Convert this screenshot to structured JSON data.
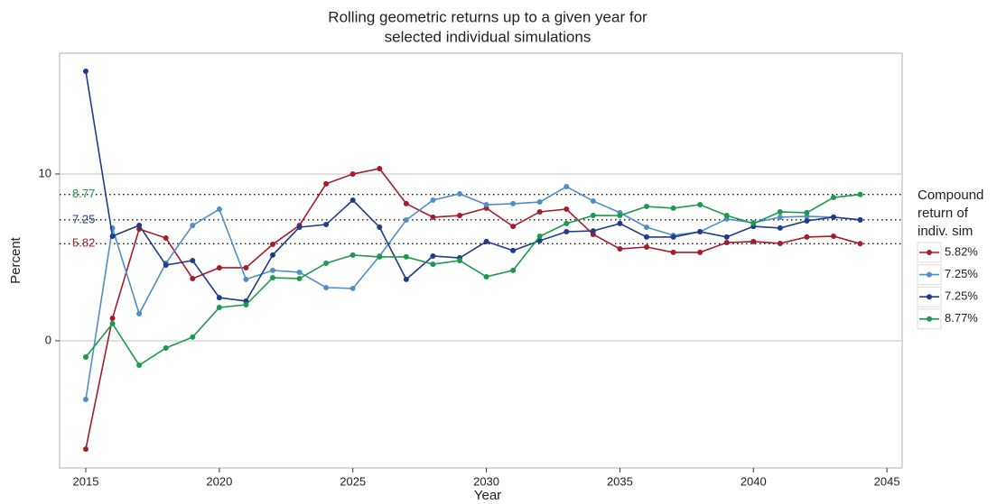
{
  "chart_data": {
    "type": "line",
    "title": [
      "Rolling geometric returns up to a given year for",
      "selected individual simulations"
    ],
    "x_label": "Year",
    "y_label": "Percent",
    "legend_title": [
      "Compound",
      "return of",
      "indiv. sim"
    ],
    "x": [
      2015,
      2016,
      2017,
      2018,
      2019,
      2020,
      2021,
      2022,
      2023,
      2024,
      2025,
      2026,
      2027,
      2028,
      2029,
      2030,
      2031,
      2032,
      2033,
      2034,
      2035,
      2036,
      2037,
      2038,
      2039,
      2040,
      2041,
      2042,
      2043,
      2044
    ],
    "xlim": [
      2014.02,
      2045.57
    ],
    "xticks": [
      2015,
      2020,
      2025,
      2030,
      2035,
      2040,
      2045
    ],
    "ylim": [
      -7.62,
      17.24
    ],
    "yticks": [
      0,
      10
    ],
    "grid": true,
    "series": [
      {
        "name": "5.82%",
        "color": "#a51c2a",
        "values": [
          -6.49,
          1.35,
          6.7,
          6.16,
          3.73,
          4.38,
          4.38,
          5.78,
          6.92,
          9.41,
          10.0,
          10.32,
          8.22,
          7.41,
          7.51,
          7.95,
          6.86,
          7.73,
          7.89,
          6.38,
          5.51,
          5.62,
          5.3,
          5.3,
          5.89,
          5.95,
          5.84,
          6.22,
          6.27,
          5.82
        ]
      },
      {
        "name": "7.25%",
        "color": "#4f8fc6",
        "values": [
          -3.51,
          6.76,
          1.62,
          4.65,
          6.92,
          7.89,
          3.68,
          4.22,
          4.11,
          3.19,
          3.14,
          5.08,
          7.24,
          8.43,
          8.81,
          8.16,
          8.22,
          8.32,
          9.24,
          8.38,
          7.68,
          6.81,
          6.32,
          6.54,
          7.3,
          7.08,
          7.41,
          7.46,
          7.41,
          7.25
        ]
      },
      {
        "name": "7.25%",
        "color": "#1f3b8c",
        "values": [
          16.16,
          6.27,
          6.92,
          4.54,
          4.81,
          2.59,
          2.38,
          5.14,
          6.81,
          6.97,
          8.43,
          6.81,
          3.68,
          5.08,
          4.97,
          5.95,
          5.41,
          6.0,
          6.54,
          6.59,
          7.03,
          6.22,
          6.22,
          6.54,
          6.22,
          6.86,
          6.76,
          7.19,
          7.41,
          7.25
        ]
      },
      {
        "name": "8.77%",
        "color": "#1a9a4a",
        "values": [
          -0.97,
          1.03,
          -1.46,
          -0.43,
          0.22,
          2.0,
          2.16,
          3.78,
          3.73,
          4.65,
          5.14,
          5.03,
          5.03,
          4.59,
          4.81,
          3.84,
          4.22,
          6.27,
          7.03,
          7.51,
          7.51,
          8.05,
          7.95,
          8.16,
          7.51,
          7.03,
          7.73,
          7.68,
          8.59,
          8.77
        ]
      }
    ],
    "reference_lines": [
      {
        "value": 8.77,
        "color": "#1a9a4a"
      },
      {
        "value": 7.25,
        "color": "#1f3b8c"
      },
      {
        "value": 5.82,
        "color": "#a51c2a"
      }
    ]
  }
}
